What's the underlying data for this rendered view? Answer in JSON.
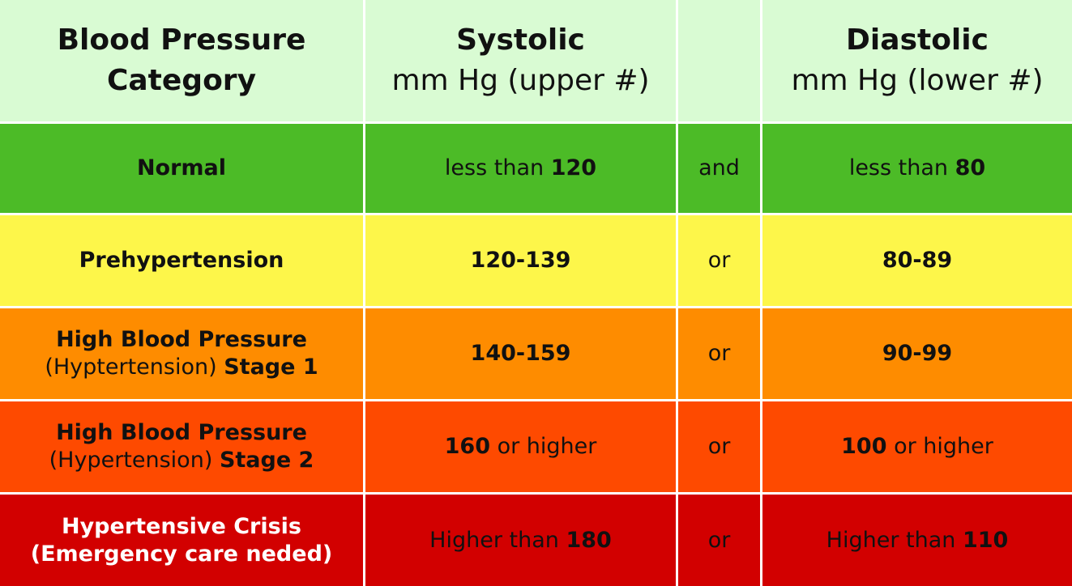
{
  "header": {
    "color": "#d9fbd3",
    "cells": [
      {
        "lines": [
          [
            {
              "text": "Blood Pressure",
              "bold": true
            }
          ],
          [
            {
              "text": "Category",
              "bold": true
            }
          ]
        ]
      },
      {
        "lines": [
          [
            {
              "text": "Systolic",
              "bold": true
            }
          ],
          [
            {
              "text": "mm Hg (upper #)",
              "bold": false
            }
          ]
        ]
      },
      {
        "lines": []
      },
      {
        "lines": [
          [
            {
              "text": "Diastolic",
              "bold": true
            }
          ],
          [
            {
              "text": "mm Hg (lower #)",
              "bold": false
            }
          ]
        ]
      }
    ]
  },
  "rows": [
    {
      "color": "#4cbb27",
      "cells": [
        {
          "lines": [
            [
              {
                "text": "Normal",
                "bold": true
              }
            ]
          ]
        },
        {
          "lines": [
            [
              {
                "text": "less than ",
                "bold": false
              },
              {
                "text": "120",
                "bold": true
              }
            ]
          ]
        },
        {
          "lines": [
            [
              {
                "text": "and",
                "bold": false
              }
            ]
          ]
        },
        {
          "lines": [
            [
              {
                "text": "less than ",
                "bold": false
              },
              {
                "text": "80",
                "bold": true
              }
            ]
          ]
        }
      ]
    },
    {
      "color": "#fdf64a",
      "cells": [
        {
          "lines": [
            [
              {
                "text": "Prehypertension",
                "bold": true
              }
            ]
          ]
        },
        {
          "lines": [
            [
              {
                "text": "120-139",
                "bold": true
              }
            ]
          ]
        },
        {
          "lines": [
            [
              {
                "text": "or",
                "bold": false
              }
            ]
          ]
        },
        {
          "lines": [
            [
              {
                "text": "80-89",
                "bold": true
              }
            ]
          ]
        }
      ]
    },
    {
      "color": "#fe8c00",
      "cells": [
        {
          "lines": [
            [
              {
                "text": "High Blood Pressure",
                "bold": true
              }
            ],
            [
              {
                "text": "(Hyptertension) ",
                "bold": false
              },
              {
                "text": "Stage 1",
                "bold": true
              }
            ]
          ]
        },
        {
          "lines": [
            [
              {
                "text": "140-159",
                "bold": true
              }
            ]
          ]
        },
        {
          "lines": [
            [
              {
                "text": "or",
                "bold": false
              }
            ]
          ]
        },
        {
          "lines": [
            [
              {
                "text": "90-99",
                "bold": true
              }
            ]
          ]
        }
      ]
    },
    {
      "color": "#fe4a00",
      "cells": [
        {
          "lines": [
            [
              {
                "text": "High Blood Pressure",
                "bold": true
              }
            ],
            [
              {
                "text": "(Hypertension) ",
                "bold": false
              },
              {
                "text": "Stage 2",
                "bold": true
              }
            ]
          ]
        },
        {
          "lines": [
            [
              {
                "text": "160",
                "bold": true
              },
              {
                "text": " or higher",
                "bold": false
              }
            ]
          ]
        },
        {
          "lines": [
            [
              {
                "text": "or",
                "bold": false
              }
            ]
          ]
        },
        {
          "lines": [
            [
              {
                "text": "100",
                "bold": true
              },
              {
                "text": " or higher",
                "bold": false
              }
            ]
          ]
        }
      ]
    },
    {
      "color": "#d20000",
      "cells": [
        {
          "text_color": "#ffffff",
          "lines": [
            [
              {
                "text": "Hypertensive Crisis",
                "bold": true
              }
            ],
            [
              {
                "text": "(Emergency care neded)",
                "bold": true
              }
            ]
          ]
        },
        {
          "lines": [
            [
              {
                "text": "Higher than ",
                "bold": false
              },
              {
                "text": "180",
                "bold": true
              }
            ]
          ]
        },
        {
          "lines": [
            [
              {
                "text": "or",
                "bold": false
              }
            ]
          ]
        },
        {
          "lines": [
            [
              {
                "text": "Higher than ",
                "bold": false
              },
              {
                "text": "110",
                "bold": true
              }
            ]
          ]
        }
      ]
    }
  ]
}
